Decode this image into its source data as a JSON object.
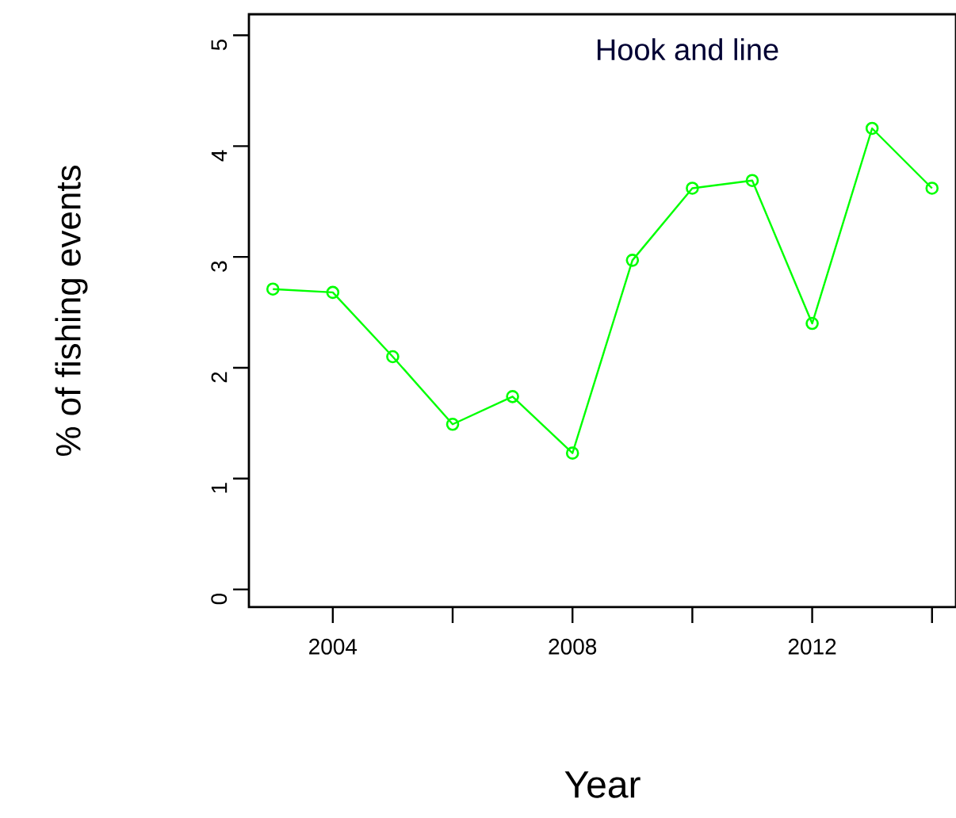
{
  "chart_data": {
    "type": "line",
    "title": "Hook and line",
    "xlabel": "Year",
    "ylabel": "% of fishing events",
    "x": [
      2003,
      2004,
      2005,
      2006,
      2007,
      2008,
      2009,
      2010,
      2011,
      2012,
      2013,
      2014
    ],
    "series": [
      {
        "color": "#00ff00",
        "values": [
          2.71,
          2.68,
          2.1,
          1.49,
          1.74,
          1.23,
          2.97,
          3.62,
          3.69,
          2.4,
          4.16,
          3.62
        ]
      }
    ],
    "xlim": [
      2002.6,
      2014.4
    ],
    "ylim": [
      -0.16,
      5.19
    ],
    "xticks": [
      2004,
      {
        "value": 2006,
        "label": null
      },
      2008,
      {
        "value": 2010,
        "label": null
      },
      2012,
      {
        "value": 2014,
        "label": null
      }
    ],
    "yticks": [
      0,
      1,
      2,
      3,
      4,
      5
    ],
    "marker": "circle",
    "line_style": "solid"
  }
}
